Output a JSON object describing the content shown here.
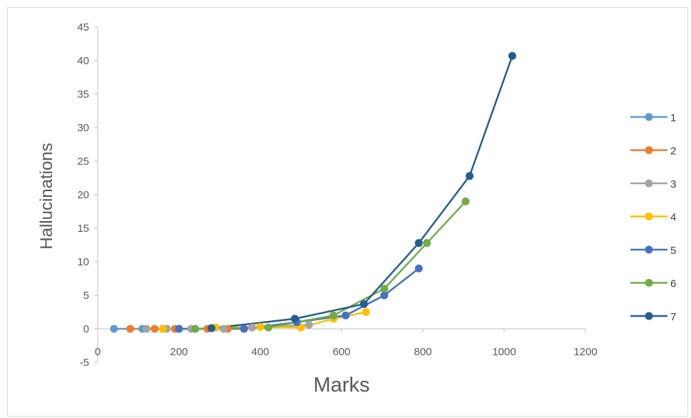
{
  "chart_data": {
    "type": "scatter",
    "xlabel": "Marks",
    "ylabel": "Hallucinations",
    "xlim": [
      0,
      1200
    ],
    "ylim": [
      -5,
      45
    ],
    "xticks": [
      "0",
      "200",
      "400",
      "600",
      "800",
      "1000",
      "1200"
    ],
    "yticks": [
      "45",
      "40",
      "35",
      "30",
      "25",
      "20",
      "15",
      "10",
      "5",
      "0",
      "-5"
    ],
    "legend_position": "right",
    "grid": false,
    "series": [
      {
        "name": "1",
        "color": "#5b9bd5",
        "points": [
          [
            40,
            0
          ],
          [
            110,
            0
          ],
          [
            160,
            0
          ],
          [
            200,
            0
          ]
        ]
      },
      {
        "name": "2",
        "color": "#ed7d31",
        "points": [
          [
            80,
            0
          ],
          [
            140,
            0
          ],
          [
            190,
            0
          ],
          [
            270,
            0
          ],
          [
            320,
            0
          ]
        ]
      },
      {
        "name": "3",
        "color": "#a5a5a5",
        "points": [
          [
            120,
            0
          ],
          [
            170,
            0
          ],
          [
            230,
            0
          ],
          [
            310,
            0
          ],
          [
            380,
            0.2
          ],
          [
            520,
            0.6
          ]
        ]
      },
      {
        "name": "4",
        "color": "#ffc000",
        "points": [
          [
            160,
            0
          ],
          [
            240,
            0
          ],
          [
            290,
            0.2
          ],
          [
            400,
            0.3
          ],
          [
            500,
            0.2
          ],
          [
            580,
            1.5
          ],
          [
            660,
            2.5
          ]
        ]
      },
      {
        "name": "5",
        "color": "#4472c4",
        "points": [
          [
            200,
            0
          ],
          [
            360,
            0
          ],
          [
            490,
            1
          ],
          [
            610,
            2
          ],
          [
            705,
            5
          ],
          [
            790,
            9
          ]
        ]
      },
      {
        "name": "6",
        "color": "#70ad47",
        "points": [
          [
            240,
            0
          ],
          [
            420,
            0.2
          ],
          [
            580,
            2
          ],
          [
            705,
            6
          ],
          [
            810,
            12.8
          ],
          [
            905,
            19
          ]
        ]
      },
      {
        "name": "7",
        "color": "#255e91",
        "points": [
          [
            280,
            0.1
          ],
          [
            485,
            1.5
          ],
          [
            655,
            3.7
          ],
          [
            790,
            12.8
          ],
          [
            915,
            22.8
          ],
          [
            1020,
            40.7
          ]
        ]
      }
    ]
  }
}
